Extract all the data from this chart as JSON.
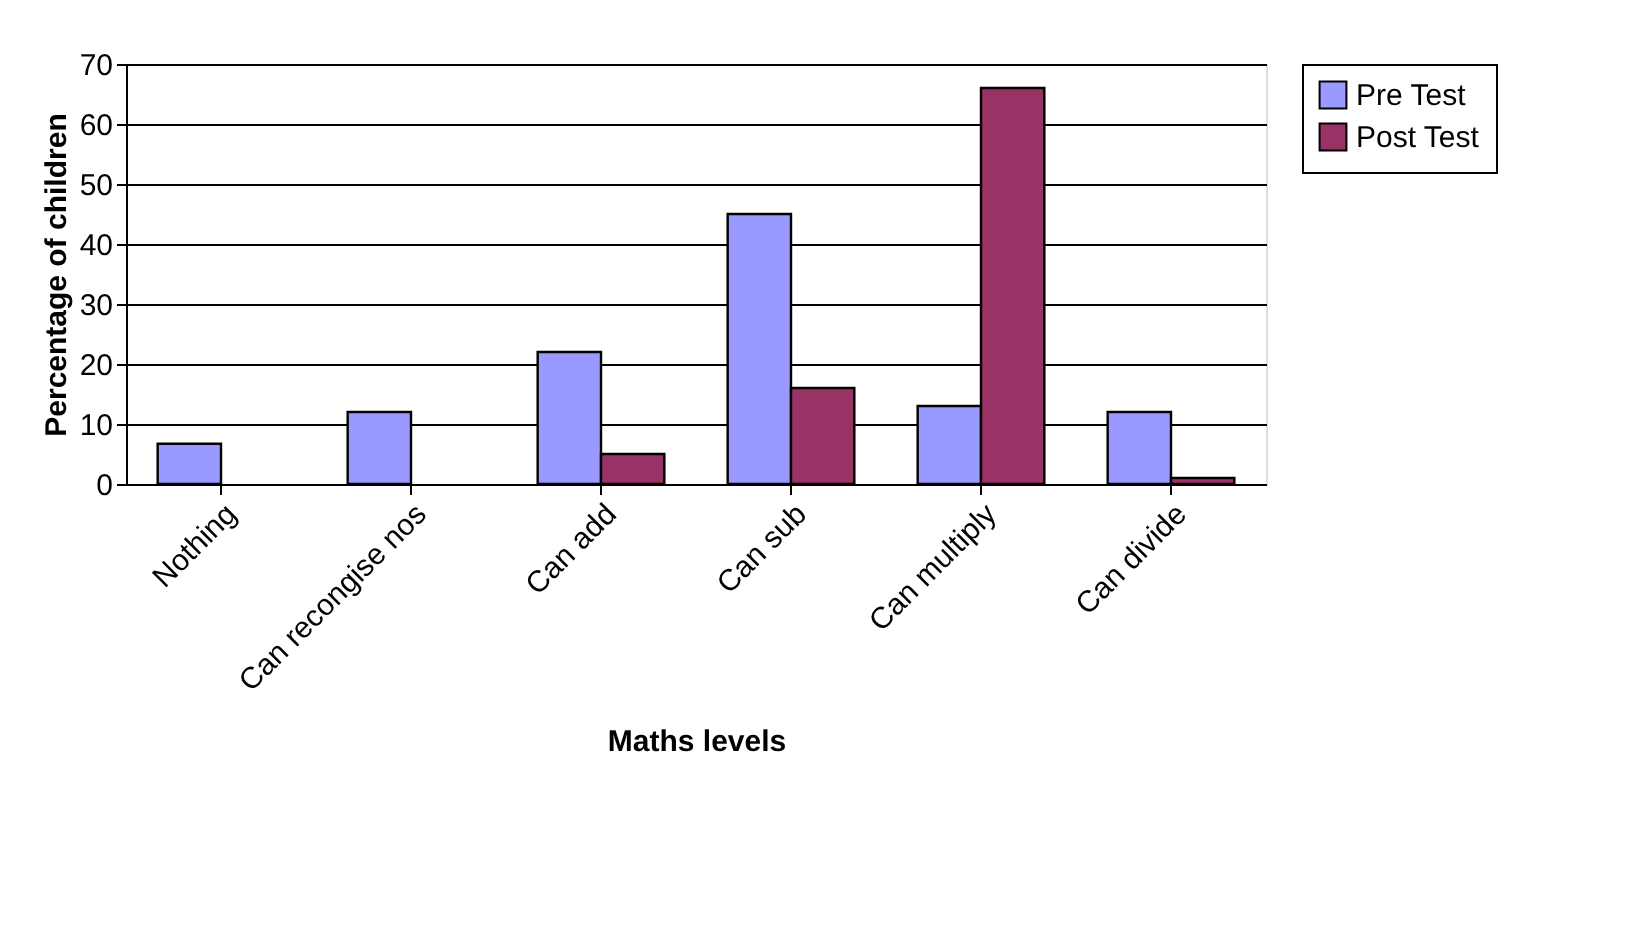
{
  "chart_data": {
    "type": "bar",
    "xlabel": "Maths levels",
    "ylabel": "Percentage of children",
    "categories": [
      "Nothing",
      "Can recongise nos",
      "Can add",
      "Can sub",
      "Can multiply",
      "Can divide"
    ],
    "series": [
      {
        "name": "Pre Test",
        "color": "#9999ff",
        "values": [
          6.7,
          12,
          22,
          45,
          13,
          12
        ]
      },
      {
        "name": "Post Test",
        "color": "#993366",
        "values": [
          null,
          null,
          5,
          16,
          66,
          1
        ]
      }
    ],
    "ylim": [
      0,
      70
    ],
    "yticks": [
      0,
      10,
      20,
      30,
      40,
      50,
      60,
      70
    ],
    "grid": "y",
    "legend": "right"
  }
}
